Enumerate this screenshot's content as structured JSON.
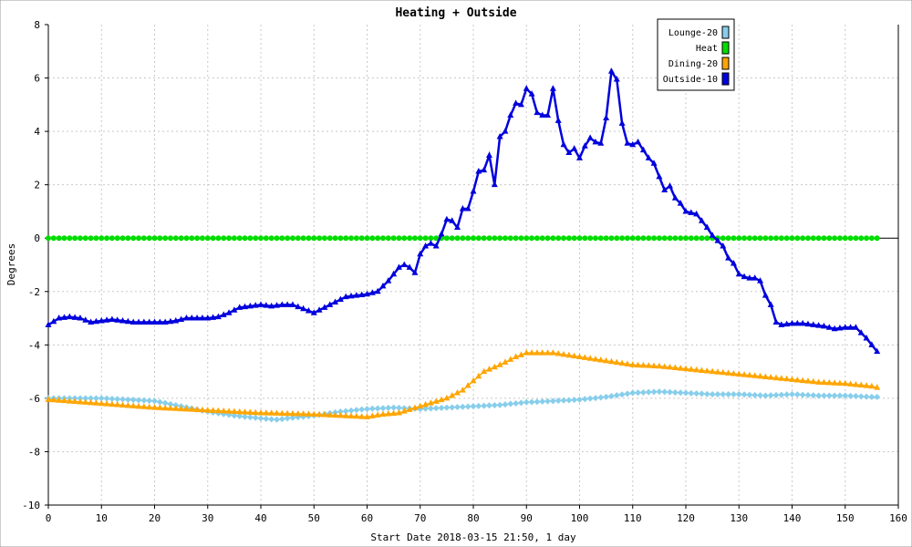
{
  "chart_data": {
    "type": "line",
    "title": "Heating + Outside",
    "xlabel": "Start Date 2018-03-15 21:50, 1 day",
    "ylabel": "Degrees",
    "xlim": [
      0,
      160
    ],
    "ylim": [
      -10,
      8
    ],
    "xticks": [
      0,
      10,
      20,
      30,
      40,
      50,
      60,
      70,
      80,
      90,
      100,
      110,
      120,
      130,
      140,
      150,
      160
    ],
    "yticks": [
      -10,
      -8,
      -6,
      -4,
      -2,
      0,
      2,
      4,
      6,
      8
    ],
    "grid": true,
    "legend_position": "top-right",
    "series": [
      {
        "name": "Lounge-20",
        "color": "#87ceeb",
        "marker": "diamond",
        "x": [
          0,
          5,
          10,
          15,
          20,
          25,
          30,
          35,
          40,
          43,
          45,
          50,
          55,
          60,
          65,
          70,
          75,
          80,
          85,
          90,
          95,
          100,
          105,
          110,
          115,
          120,
          125,
          130,
          135,
          140,
          145,
          150,
          155,
          156
        ],
        "y": [
          -6.0,
          -6.0,
          -6.0,
          -6.05,
          -6.1,
          -6.3,
          -6.5,
          -6.65,
          -6.75,
          -6.8,
          -6.75,
          -6.65,
          -6.5,
          -6.4,
          -6.35,
          -6.4,
          -6.35,
          -6.3,
          -6.25,
          -6.15,
          -6.1,
          -6.05,
          -5.95,
          -5.8,
          -5.75,
          -5.8,
          -5.85,
          -5.85,
          -5.9,
          -5.85,
          -5.9,
          -5.9,
          -5.95,
          -5.95
        ]
      },
      {
        "name": "Heat",
        "color": "#00dd00",
        "marker": "circle",
        "x": [
          0,
          156
        ],
        "y": [
          0,
          0
        ]
      },
      {
        "name": "Dining-20",
        "color": "#ffa500",
        "marker": "triangle",
        "x": [
          0,
          10,
          20,
          30,
          40,
          50,
          55,
          60,
          63,
          66,
          70,
          75,
          78,
          80,
          82,
          85,
          88,
          90,
          95,
          100,
          105,
          110,
          115,
          120,
          125,
          130,
          135,
          140,
          145,
          150,
          155,
          156
        ],
        "y": [
          -6.05,
          -6.2,
          -6.35,
          -6.45,
          -6.55,
          -6.6,
          -6.65,
          -6.7,
          -6.6,
          -6.55,
          -6.3,
          -6.0,
          -5.7,
          -5.35,
          -5.0,
          -4.75,
          -4.45,
          -4.3,
          -4.3,
          -4.45,
          -4.6,
          -4.75,
          -4.8,
          -4.9,
          -5.0,
          -5.1,
          -5.2,
          -5.3,
          -5.4,
          -5.45,
          -5.55,
          -5.6
        ]
      },
      {
        "name": "Outside-10",
        "color": "#0000dd",
        "marker": "triangle",
        "x": [
          0,
          2,
          4,
          6,
          8,
          10,
          12,
          14,
          16,
          18,
          20,
          22,
          24,
          26,
          28,
          30,
          32,
          34,
          36,
          38,
          40,
          42,
          44,
          46,
          48,
          50,
          52,
          54,
          56,
          58,
          60,
          62,
          64,
          66,
          67,
          68,
          69,
          70,
          71,
          72,
          73,
          74,
          75,
          76,
          77,
          78,
          79,
          80,
          81,
          82,
          83,
          84,
          85,
          86,
          87,
          88,
          89,
          90,
          91,
          92,
          93,
          94,
          95,
          96,
          97,
          98,
          99,
          100,
          101,
          102,
          103,
          104,
          105,
          106,
          107,
          108,
          109,
          110,
          111,
          112,
          113,
          114,
          115,
          116,
          117,
          118,
          119,
          120,
          121,
          122,
          123,
          124,
          125,
          126,
          127,
          128,
          129,
          130,
          131,
          132,
          133,
          134,
          135,
          136,
          137,
          138,
          140,
          142,
          144,
          146,
          148,
          150,
          152,
          154,
          156
        ],
        "y": [
          -3.25,
          -3.0,
          -2.95,
          -3.0,
          -3.15,
          -3.1,
          -3.05,
          -3.1,
          -3.15,
          -3.15,
          -3.15,
          -3.15,
          -3.1,
          -3.0,
          -3.0,
          -3.0,
          -2.95,
          -2.8,
          -2.6,
          -2.55,
          -2.5,
          -2.55,
          -2.5,
          -2.5,
          -2.65,
          -2.8,
          -2.6,
          -2.4,
          -2.2,
          -2.15,
          -2.1,
          -2.0,
          -1.6,
          -1.1,
          -1.0,
          -1.1,
          -1.3,
          -0.6,
          -0.3,
          -0.2,
          -0.3,
          0.15,
          0.7,
          0.65,
          0.4,
          1.1,
          1.1,
          1.75,
          2.5,
          2.55,
          3.1,
          2.0,
          3.8,
          4.0,
          4.6,
          5.05,
          5.0,
          5.6,
          5.4,
          4.7,
          4.6,
          4.6,
          5.6,
          4.4,
          3.5,
          3.2,
          3.35,
          3.0,
          3.45,
          3.75,
          3.6,
          3.55,
          4.5,
          6.25,
          5.95,
          4.3,
          3.55,
          3.5,
          3.6,
          3.3,
          3.0,
          2.8,
          2.3,
          1.8,
          1.95,
          1.5,
          1.3,
          1.0,
          0.95,
          0.9,
          0.65,
          0.4,
          0.1,
          -0.1,
          -0.3,
          -0.75,
          -0.95,
          -1.35,
          -1.45,
          -1.5,
          -1.5,
          -1.6,
          -2.15,
          -2.5,
          -3.15,
          -3.25,
          -3.2,
          -3.2,
          -3.25,
          -3.3,
          -3.4,
          -3.35,
          -3.35,
          -3.75,
          -4.25
        ]
      }
    ]
  }
}
